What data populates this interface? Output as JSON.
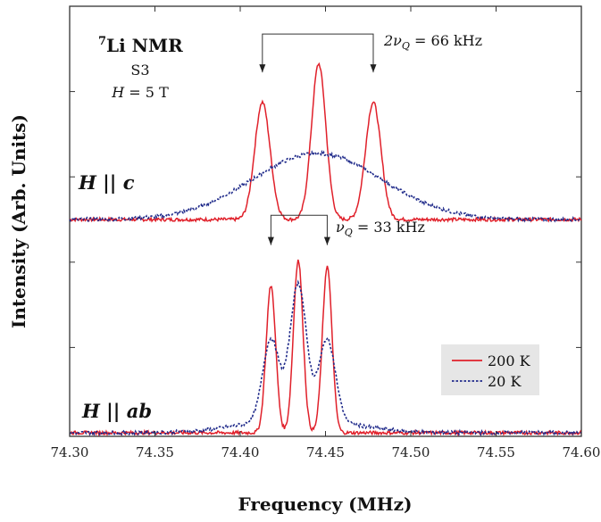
{
  "chart_data": {
    "type": "line",
    "xlabel": "Frequency (MHz)",
    "ylabel": "Intensity (Arb. Units)",
    "xlim": [
      74.3,
      74.6
    ],
    "x_ticks": [
      "74.30",
      "74.35",
      "74.40",
      "74.45",
      "74.50",
      "74.55",
      "74.60"
    ],
    "x_tick_values": [
      74.3,
      74.35,
      74.4,
      74.45,
      74.5,
      74.55,
      74.6
    ],
    "ylim": [
      0,
      1
    ],
    "legend": {
      "placement": "lower-right",
      "entries": [
        {
          "label": "200 K",
          "color": "#e0202a",
          "style": "solid"
        },
        {
          "label": "20 K",
          "color": "#1f2a8a",
          "style": "dotted"
        }
      ]
    },
    "annotations": {
      "nucleus_sup": "7",
      "nucleus": "Li NMR",
      "sample": "S3",
      "field_var": "H",
      "field_rest": " = 5 T",
      "panel_top_h": "H",
      "panel_top_par": " || ",
      "panel_top_dir": "c",
      "panel_bottom_h": "H",
      "panel_bottom_par": " || ",
      "panel_bottom_dir": "ab",
      "split_top_prefix": "2ν",
      "split_top_sub": "Q",
      "split_top_rest": " = 66 kHz",
      "split_bottom_prefix": "ν",
      "split_bottom_sub": "Q",
      "split_bottom_rest": " = 33 kHz"
    },
    "split_markers": {
      "top": {
        "from": 74.413,
        "to": 74.478
      },
      "bottom": {
        "from": 74.418,
        "to": 74.451
      }
    },
    "panels": [
      {
        "name": "H || c",
        "baseline": 0.5,
        "series": [
          {
            "temperature": "200 K",
            "peaks": [
              {
                "center": 74.413,
                "height": 0.275,
                "width": 0.0045
              },
              {
                "center": 74.446,
                "height": 0.365,
                "width": 0.0042
              },
              {
                "center": 74.478,
                "height": 0.275,
                "width": 0.0045
              }
            ]
          },
          {
            "temperature": "20 K",
            "peaks": [
              {
                "center": 74.445,
                "height": 0.155,
                "width": 0.038
              }
            ]
          }
        ]
      },
      {
        "name": "H || ab",
        "baseline": 0.0,
        "series": [
          {
            "temperature": "200 K",
            "peaks": [
              {
                "center": 74.418,
                "height": 0.345,
                "width": 0.0028
              },
              {
                "center": 74.434,
                "height": 0.405,
                "width": 0.0028
              },
              {
                "center": 74.451,
                "height": 0.39,
                "width": 0.0028
              }
            ]
          },
          {
            "temperature": "20 K",
            "peaks": [
              {
                "center": 74.418,
                "height": 0.19,
                "width": 0.0048
              },
              {
                "center": 74.434,
                "height": 0.315,
                "width": 0.0048
              },
              {
                "center": 74.451,
                "height": 0.19,
                "width": 0.0048
              },
              {
                "center": 74.434,
                "height": 0.035,
                "width": 0.03
              }
            ]
          }
        ]
      }
    ]
  }
}
